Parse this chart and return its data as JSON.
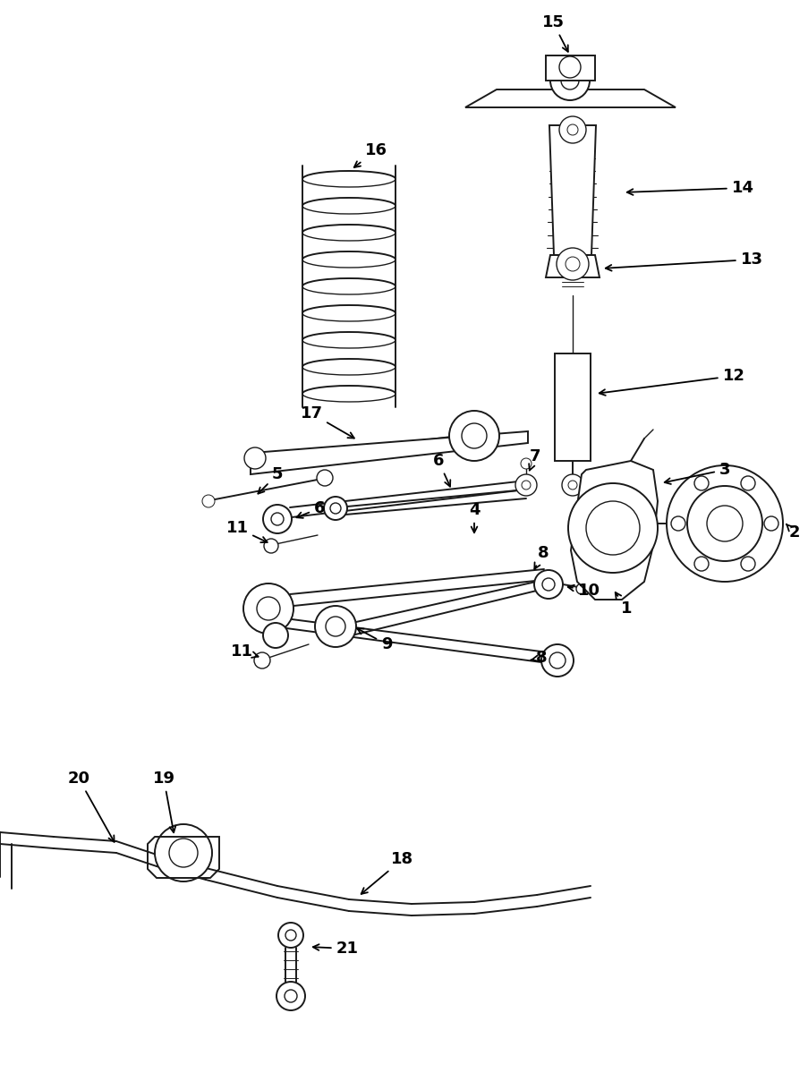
{
  "background_color": "#ffffff",
  "line_color": "#1a1a1a",
  "figsize": [
    9.04,
    11.99
  ],
  "dpi": 100
}
